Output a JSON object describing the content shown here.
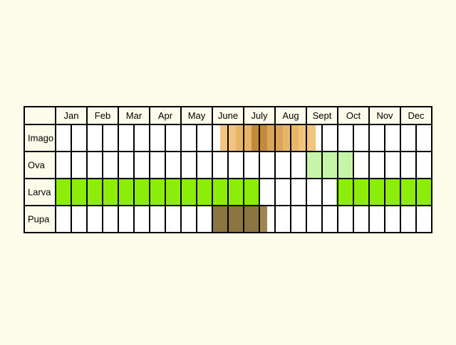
{
  "chart_data": {
    "type": "table",
    "months": [
      "Jan",
      "Feb",
      "Mar",
      "Apr",
      "May",
      "June",
      "July",
      "Aug",
      "Sept",
      "Oct",
      "Nov",
      "Dec"
    ],
    "columns_per_month": 2,
    "rows": [
      {
        "label": "Imago",
        "periods": [
          {
            "start_col": 10.5,
            "end_col": 11.5,
            "color": "#f2c57e"
          },
          {
            "start_col": 11.5,
            "end_col": 12.5,
            "color": "#e6b567"
          },
          {
            "start_col": 12.5,
            "end_col": 13.5,
            "color": "#c28a3b"
          },
          {
            "start_col": 13.5,
            "end_col": 14.5,
            "color": "#d9a55a"
          },
          {
            "start_col": 14.5,
            "end_col": 15.5,
            "color": "#e6b567"
          },
          {
            "start_col": 15.5,
            "end_col": 16.6,
            "color": "#f2c57e"
          }
        ]
      },
      {
        "label": "Ova",
        "periods": [
          {
            "start_col": 16.0,
            "end_col": 17.5,
            "color": "#c6f4a8"
          },
          {
            "start_col": 17.5,
            "end_col": 19.0,
            "color": "#c6f4a8"
          }
        ]
      },
      {
        "label": "Larva",
        "periods": [
          {
            "start_col": 0,
            "end_col": 13,
            "color": "#8ced0a"
          },
          {
            "start_col": 17.9,
            "end_col": 24,
            "color": "#8ced0a"
          }
        ]
      },
      {
        "label": "Pupa",
        "periods": [
          {
            "start_col": 10,
            "end_col": 13,
            "color": "#8c7540"
          },
          {
            "start_col": 13,
            "end_col": 13.5,
            "color": "#a08550"
          }
        ]
      }
    ]
  }
}
